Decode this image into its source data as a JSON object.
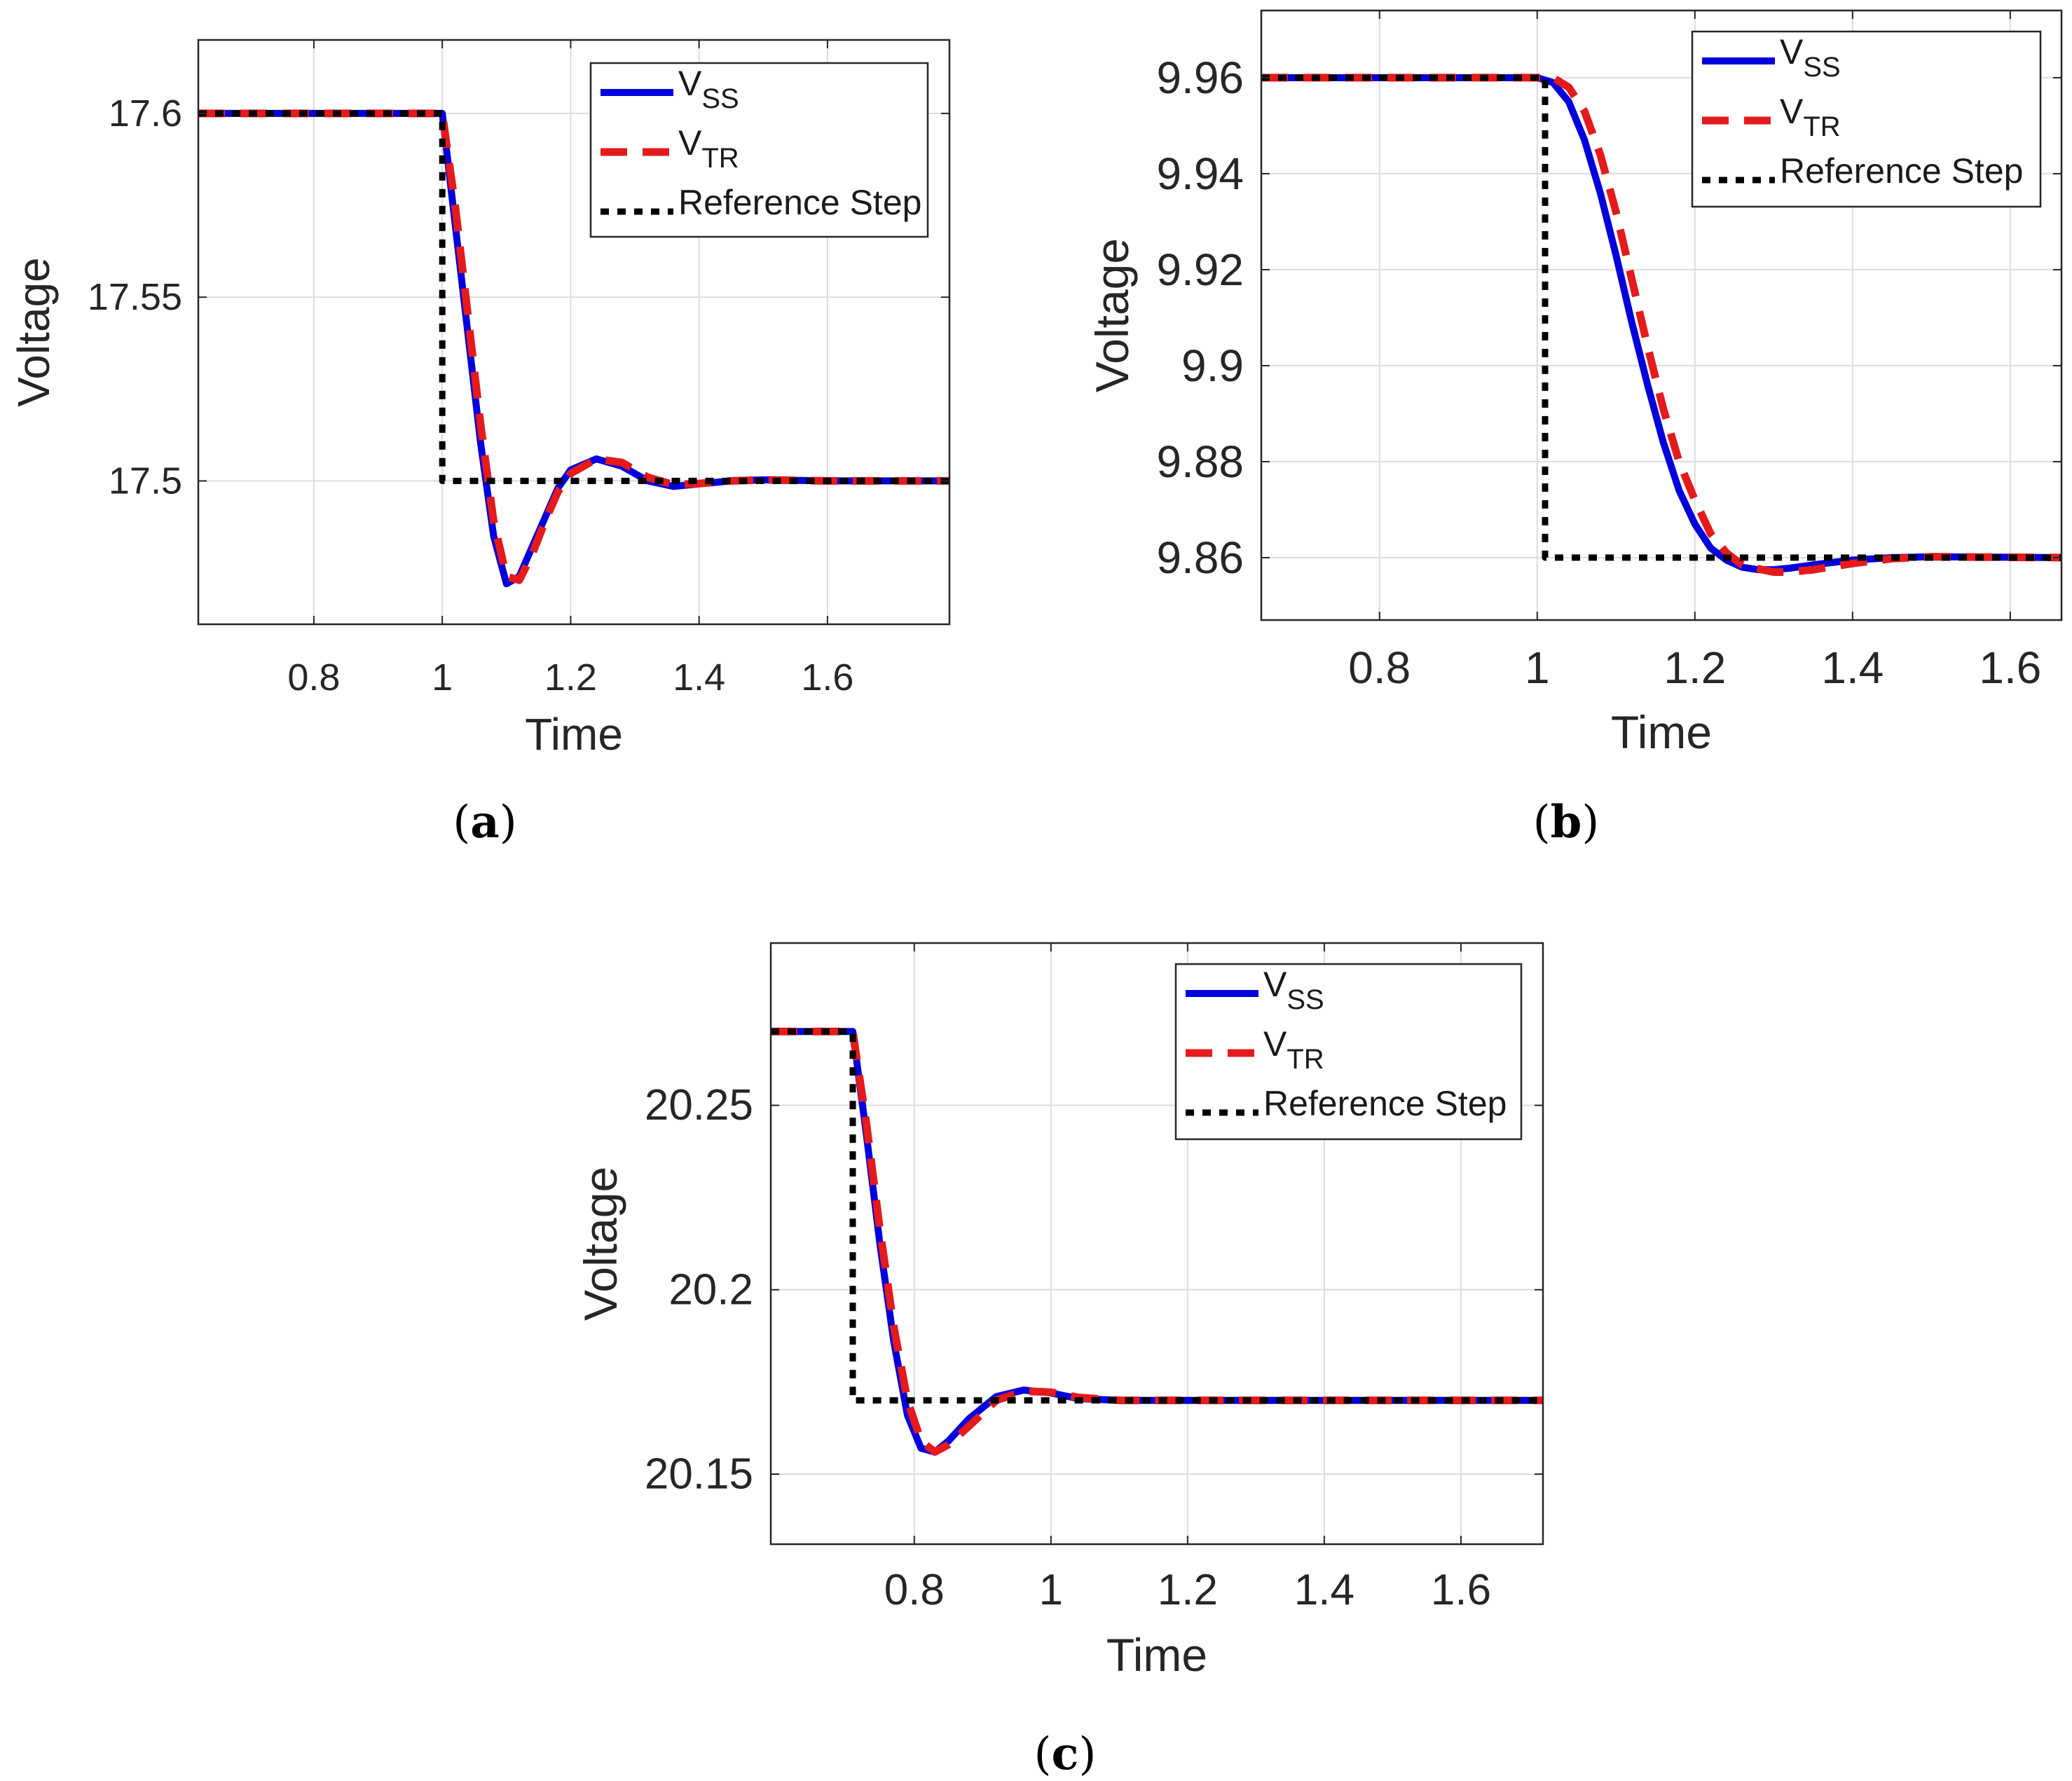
{
  "figure": {
    "panels_count": 3
  },
  "chart_data": [
    {
      "type": "line",
      "panel": "a",
      "caption": {
        "open": "(",
        "letter": "a",
        "close": ")"
      },
      "xlabel": "Time",
      "ylabel": "Voltage",
      "xlim": [
        0.62,
        1.79
      ],
      "ylim": [
        17.461,
        17.62
      ],
      "xticks": [
        0.8,
        1.0,
        1.2,
        1.4,
        1.6
      ],
      "xtick_labels": [
        "0.8",
        "1",
        "1.2",
        "1.4",
        "1.6"
      ],
      "yticks": [
        17.5,
        17.55,
        17.6
      ],
      "ytick_labels": [
        "17.5",
        "17.55",
        "17.6"
      ],
      "grid": true,
      "legend_position": "top-right",
      "legend": [
        {
          "base": "V",
          "sub": "SS"
        },
        {
          "base": "V",
          "sub": "TR"
        },
        {
          "base": "Reference Step",
          "sub": ""
        }
      ],
      "series": [
        {
          "name": "V_SS",
          "color": "#0000dd",
          "style": "solid",
          "x": [
            0.62,
            1.0,
            1.02,
            1.04,
            1.06,
            1.08,
            1.1,
            1.12,
            1.14,
            1.16,
            1.18,
            1.2,
            1.24,
            1.28,
            1.32,
            1.36,
            1.4,
            1.45,
            1.5,
            1.6,
            1.79
          ],
          "y": [
            17.6,
            17.6,
            17.57,
            17.54,
            17.51,
            17.485,
            17.472,
            17.474,
            17.482,
            17.49,
            17.498,
            17.503,
            17.506,
            17.504,
            17.5,
            17.4985,
            17.4992,
            17.5,
            17.5003,
            17.5,
            17.5
          ]
        },
        {
          "name": "V_TR",
          "color": "#e41a1c",
          "style": "dashed",
          "x": [
            0.62,
            1.0,
            1.02,
            1.04,
            1.06,
            1.08,
            1.1,
            1.12,
            1.14,
            1.16,
            1.18,
            1.2,
            1.24,
            1.28,
            1.32,
            1.36,
            1.4,
            1.45,
            1.5,
            1.6,
            1.79
          ],
          "y": [
            17.6,
            17.6,
            17.575,
            17.545,
            17.515,
            17.489,
            17.474,
            17.473,
            17.48,
            17.489,
            17.497,
            17.502,
            17.506,
            17.505,
            17.501,
            17.499,
            17.4993,
            17.5,
            17.5003,
            17.5,
            17.5
          ]
        },
        {
          "name": "Reference Step",
          "color": "#000000",
          "style": "dotted",
          "x": [
            0.62,
            1.0,
            1.0,
            1.79
          ],
          "y": [
            17.6,
            17.6,
            17.5,
            17.5
          ]
        }
      ]
    },
    {
      "type": "line",
      "panel": "b",
      "caption": {
        "open": "(",
        "letter": "b",
        "close": ")"
      },
      "xlabel": "Time",
      "ylabel": "Voltage",
      "xlim": [
        0.65,
        1.665
      ],
      "ylim": [
        9.847,
        9.974
      ],
      "xticks": [
        0.8,
        1.0,
        1.2,
        1.4,
        1.6
      ],
      "xtick_labels": [
        "0.8",
        "1",
        "1.2",
        "1.4",
        "1.6"
      ],
      "yticks": [
        9.86,
        9.88,
        9.9,
        9.92,
        9.94,
        9.96
      ],
      "ytick_labels": [
        "9.86",
        "9.88",
        "9.9",
        "9.92",
        "9.94",
        "9.96"
      ],
      "grid": true,
      "legend_position": "top-right",
      "legend": [
        {
          "base": "V",
          "sub": "SS"
        },
        {
          "base": "V",
          "sub": "TR"
        },
        {
          "base": "Reference Step",
          "sub": ""
        }
      ],
      "series": [
        {
          "name": "V_SS",
          "color": "#0000dd",
          "style": "solid",
          "x": [
            0.65,
            1.0,
            1.02,
            1.04,
            1.06,
            1.08,
            1.1,
            1.12,
            1.14,
            1.16,
            1.18,
            1.2,
            1.22,
            1.24,
            1.26,
            1.28,
            1.3,
            1.32,
            1.35,
            1.4,
            1.45,
            1.5,
            1.665
          ],
          "y": [
            9.96,
            9.96,
            9.959,
            9.955,
            9.947,
            9.936,
            9.923,
            9.909,
            9.896,
            9.884,
            9.874,
            9.867,
            9.862,
            9.8595,
            9.858,
            9.8575,
            9.8575,
            9.8578,
            9.8585,
            9.8595,
            9.86,
            9.8602,
            9.86
          ]
        },
        {
          "name": "V_TR",
          "color": "#e41a1c",
          "style": "dashed",
          "x": [
            0.65,
            1.0,
            1.02,
            1.04,
            1.06,
            1.08,
            1.1,
            1.12,
            1.14,
            1.16,
            1.18,
            1.2,
            1.22,
            1.24,
            1.26,
            1.28,
            1.3,
            1.32,
            1.35,
            1.4,
            1.45,
            1.5,
            1.665
          ],
          "y": [
            9.96,
            9.96,
            9.96,
            9.958,
            9.953,
            9.944,
            9.932,
            9.918,
            9.904,
            9.891,
            9.88,
            9.872,
            9.865,
            9.861,
            9.8585,
            9.8577,
            9.857,
            9.857,
            9.8575,
            9.8588,
            9.8598,
            9.8602,
            9.86
          ]
        },
        {
          "name": "Reference Step",
          "color": "#000000",
          "style": "dotted",
          "x": [
            0.65,
            1.01,
            1.01,
            1.665
          ],
          "y": [
            9.96,
            9.96,
            9.86,
            9.86
          ]
        }
      ]
    },
    {
      "type": "line",
      "panel": "c",
      "caption": {
        "open": "(",
        "letter": "c",
        "close": ")"
      },
      "xlabel": "Time",
      "ylabel": "Voltage",
      "xlim": [
        0.59,
        1.72
      ],
      "ylim": [
        20.131,
        20.294
      ],
      "xticks": [
        0.8,
        1.0,
        1.2,
        1.4,
        1.6
      ],
      "xtick_labels": [
        "0.8",
        "1",
        "1.2",
        "1.4",
        "1.6"
      ],
      "yticks": [
        20.15,
        20.2,
        20.25
      ],
      "ytick_labels": [
        "20.15",
        "20.2",
        "20.25"
      ],
      "grid": true,
      "legend_position": "top-right",
      "legend": [
        {
          "base": "V",
          "sub": "SS"
        },
        {
          "base": "V",
          "sub": "TR"
        },
        {
          "base": "Reference Step",
          "sub": ""
        }
      ],
      "series": [
        {
          "name": "V_SS",
          "color": "#0000dd",
          "style": "solid",
          "x": [
            0.59,
            0.71,
            0.73,
            0.75,
            0.77,
            0.79,
            0.81,
            0.83,
            0.85,
            0.88,
            0.92,
            0.96,
            1.0,
            1.04,
            1.1,
            1.2,
            1.72
          ],
          "y": [
            20.27,
            20.27,
            20.242,
            20.212,
            20.186,
            20.166,
            20.157,
            20.156,
            20.159,
            20.165,
            20.171,
            20.1728,
            20.172,
            20.1705,
            20.17,
            20.17,
            20.17
          ]
        },
        {
          "name": "V_TR",
          "color": "#e41a1c",
          "style": "dashed",
          "x": [
            0.59,
            0.71,
            0.73,
            0.75,
            0.77,
            0.79,
            0.81,
            0.83,
            0.85,
            0.88,
            0.92,
            0.96,
            1.0,
            1.04,
            1.1,
            1.2,
            1.72
          ],
          "y": [
            20.27,
            20.27,
            20.245,
            20.216,
            20.19,
            20.17,
            20.159,
            20.156,
            20.158,
            20.163,
            20.17,
            20.1725,
            20.1722,
            20.1708,
            20.17,
            20.17,
            20.17
          ]
        },
        {
          "name": "Reference Step",
          "color": "#000000",
          "style": "dotted",
          "x": [
            0.59,
            0.71,
            0.71,
            1.72
          ],
          "y": [
            20.27,
            20.27,
            20.17,
            20.17
          ]
        }
      ]
    }
  ]
}
